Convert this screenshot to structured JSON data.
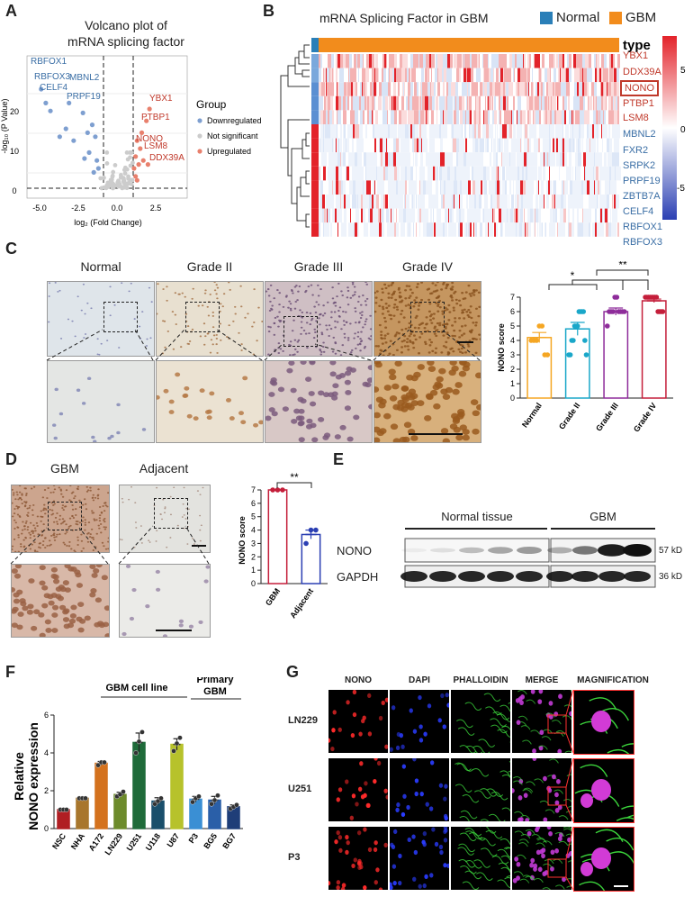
{
  "panels": {
    "A": "A",
    "B": "B",
    "C": "C",
    "D": "D",
    "E": "E",
    "F": "F",
    "G": "G"
  },
  "volcano": {
    "title_line1": "Volcano plot of",
    "title_line2": "mRNA splicing factor",
    "ylabel": "-log₁₀ (P Value)",
    "xlabel": "log₂ (Fold Change)",
    "xticks": [
      "-5.0",
      "-2.5",
      "0.0",
      "2.5"
    ],
    "yticks": [
      "0",
      "10",
      "20"
    ],
    "legend_title": "Group",
    "legend": [
      {
        "label": "Downregulated",
        "color": "#7e9fd0"
      },
      {
        "label": "Not significant",
        "color": "#cccccc"
      },
      {
        "label": "Upregulated",
        "color": "#e8806d"
      }
    ],
    "down_labels": [
      "RBFOX1",
      "RBFOX3",
      "MBNL2",
      "CELF4",
      "PRPF19"
    ],
    "up_labels": [
      "YBX1",
      "PTBP1",
      "NONO",
      "LSM8",
      "DDX39A"
    ],
    "down_color": "#3a6ea5",
    "up_color": "#c0392b"
  },
  "heatmap": {
    "title": "mRNA Splicing Factor in GBM",
    "legend": [
      {
        "label": "Normal",
        "color": "#2a7fb8"
      },
      {
        "label": "GBM",
        "color": "#f28c1c"
      }
    ],
    "type_label": "type",
    "genes_up": [
      "YBX1",
      "DDX39A",
      "NONO",
      "PTBP1",
      "LSM8"
    ],
    "genes_down": [
      "MBNL2",
      "FXR2",
      "SRPK2",
      "PRPF19",
      "ZBTB7A",
      "CELF4",
      "RBFOX1",
      "RBFOX3"
    ],
    "colorbar_ticks": [
      "5",
      "0",
      "-5"
    ],
    "highlight": "NONO"
  },
  "ihc": {
    "headers": [
      "Normal",
      "Grade II",
      "Grade III",
      "Grade IV"
    ]
  },
  "chart_data": [
    {
      "type": "bar",
      "panel": "C",
      "categories": [
        "Normal",
        "Grade II",
        "Grade III",
        "Grade IV"
      ],
      "values": [
        4.2,
        4.8,
        6.0,
        6.75
      ],
      "errors": [
        0.35,
        0.45,
        0.25,
        0.12
      ],
      "colors": [
        "#f5a623",
        "#1aa7c9",
        "#8e2c9a",
        "#c41e3a"
      ],
      "points": [
        [
          4,
          4,
          4,
          5,
          5,
          3,
          3
        ],
        [
          3,
          3,
          4,
          4,
          5,
          5,
          5,
          6,
          6,
          6,
          6,
          4,
          3
        ],
        [
          5,
          6,
          6,
          6,
          7,
          7,
          6,
          6,
          6,
          6
        ],
        [
          7,
          7,
          7,
          7,
          7,
          7,
          7,
          7,
          6,
          6,
          6,
          6
        ]
      ],
      "ylabel": "NONO score",
      "ylim": [
        0,
        7
      ],
      "yticks": [
        "0",
        "1",
        "2",
        "3",
        "4",
        "5",
        "6",
        "7"
      ],
      "sig": [
        "*",
        "**"
      ]
    },
    {
      "type": "bar",
      "panel": "D",
      "categories": [
        "GBM",
        "Adjacent"
      ],
      "values": [
        7.0,
        3.67
      ],
      "errors": [
        0.0,
        0.33
      ],
      "colors": [
        "#c41e3a",
        "#2b3fb3"
      ],
      "points": [
        [
          7,
          7,
          7
        ],
        [
          3,
          4,
          4
        ]
      ],
      "ylabel": "NONO score",
      "ylim": [
        0,
        7
      ],
      "yticks": [
        "0",
        "1",
        "2",
        "3",
        "4",
        "5",
        "6",
        "7"
      ],
      "sig": [
        "**"
      ]
    },
    {
      "type": "bar",
      "panel": "F",
      "categories": [
        "NSC",
        "NHA",
        "A172",
        "LN229",
        "U251",
        "U118",
        "U87",
        "P3",
        "BG5",
        "BG7"
      ],
      "values": [
        1.0,
        1.6,
        3.45,
        1.8,
        4.55,
        1.45,
        4.45,
        1.55,
        1.5,
        1.15
      ],
      "errors": [
        0.05,
        0.05,
        0.1,
        0.12,
        0.5,
        0.18,
        0.3,
        0.15,
        0.2,
        0.1
      ],
      "colors": [
        "#b01e23",
        "#a8762d",
        "#d4721e",
        "#6d8b2c",
        "#1f6b3a",
        "#1a4f6b",
        "#b7c22b",
        "#3a8fd4",
        "#2a5fa8",
        "#1f3e78"
      ],
      "points": [
        [
          1,
          1,
          1
        ],
        [
          1.6,
          1.6,
          1.6
        ],
        [
          3.35,
          3.5,
          3.5
        ],
        [
          1.7,
          1.8,
          1.95
        ],
        [
          4.0,
          4.6,
          5.1
        ],
        [
          1.3,
          1.45,
          1.6
        ],
        [
          4.1,
          4.5,
          4.8
        ],
        [
          1.4,
          1.6,
          1.7
        ],
        [
          1.3,
          1.5,
          1.75
        ],
        [
          1.05,
          1.15,
          1.25
        ]
      ],
      "ylabel_line1": "Relative",
      "ylabel_line2": "NONO expression",
      "ylim": [
        0,
        6
      ],
      "yticks": [
        "0",
        "2",
        "4",
        "6"
      ],
      "group1": "GBM cell line",
      "group2_line1": "Primary",
      "group2_line2": "GBM"
    }
  ],
  "western": {
    "group1": "Normal tissue",
    "group2": "GBM",
    "rows": [
      {
        "label": "NONO",
        "kd": "57 kD"
      },
      {
        "label": "GAPDH",
        "kd": "36 kD"
      }
    ]
  },
  "dtissue": {
    "headers": [
      "GBM",
      "Adjacent"
    ]
  },
  "if": {
    "columns": [
      "NONO",
      "DAPI",
      "PHALLOIDIN",
      "MERGE",
      "MAGNIFICATION"
    ],
    "rows": [
      "LN229",
      "U251",
      "P3"
    ]
  }
}
